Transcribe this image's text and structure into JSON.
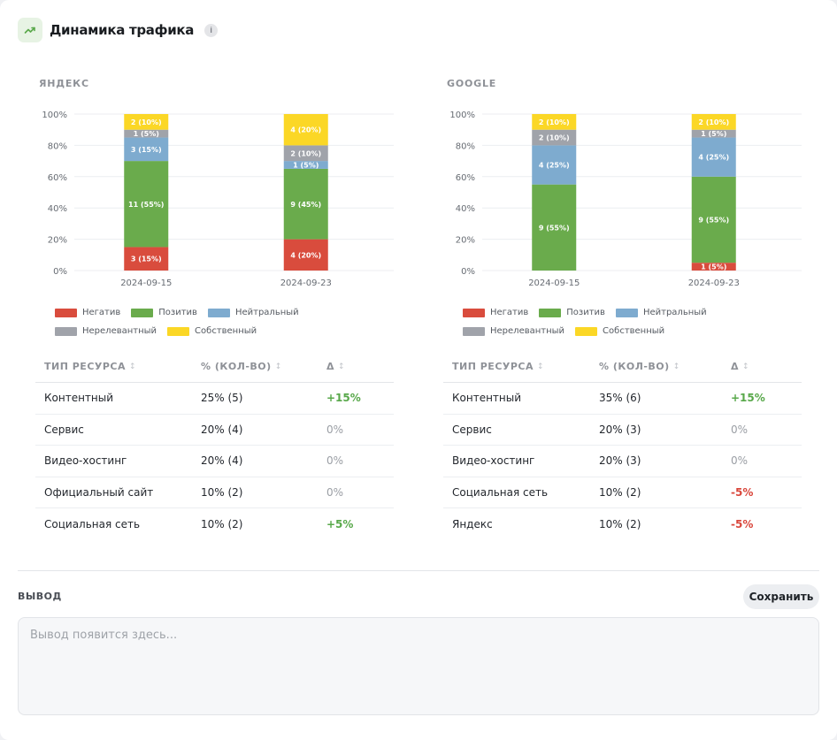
{
  "header": {
    "title": "Динамика трафика",
    "info_label": "i"
  },
  "colors": {
    "negative": "#d94c3d",
    "positive": "#6aab4c",
    "neutral": "#7eabcf",
    "irrelevant": "#a0a3aa",
    "own": "#fbd726",
    "accent_icon": "#59a84a"
  },
  "legend": {
    "items": [
      {
        "key": "negative",
        "label": "Негатив"
      },
      {
        "key": "positive",
        "label": "Позитив"
      },
      {
        "key": "neutral",
        "label": "Нейтральный"
      },
      {
        "key": "irrelevant",
        "label": "Нерелевантный"
      },
      {
        "key": "own",
        "label": "Собственный"
      }
    ]
  },
  "panels": [
    {
      "title": "ЯНДЕКС",
      "table": {
        "headers": [
          "ТИП РЕСУРСА",
          "% (КОЛ-ВО)",
          "Δ"
        ],
        "rows": [
          {
            "type": "Контентный",
            "share": "25% (5)",
            "delta": "+15%",
            "trend": "pos"
          },
          {
            "type": "Сервис",
            "share": "20% (4)",
            "delta": "0%",
            "trend": "zero"
          },
          {
            "type": "Видео-хостинг",
            "share": "20% (4)",
            "delta": "0%",
            "trend": "zero"
          },
          {
            "type": "Официальный сайт",
            "share": "10% (2)",
            "delta": "0%",
            "trend": "zero"
          },
          {
            "type": "Социальная сеть",
            "share": "10% (2)",
            "delta": "+5%",
            "trend": "pos"
          }
        ]
      }
    },
    {
      "title": "GOOGLE",
      "table": {
        "headers": [
          "ТИП РЕСУРСА",
          "% (КОЛ-ВО)",
          "Δ"
        ],
        "rows": [
          {
            "type": "Контентный",
            "share": "35% (6)",
            "delta": "+15%",
            "trend": "pos"
          },
          {
            "type": "Сервис",
            "share": "20% (3)",
            "delta": "0%",
            "trend": "zero"
          },
          {
            "type": "Видео-хостинг",
            "share": "20% (3)",
            "delta": "0%",
            "trend": "zero"
          },
          {
            "type": "Социальная сеть",
            "share": "10% (2)",
            "delta": "-5%",
            "trend": "neg"
          },
          {
            "type": "Яндекс",
            "share": "10% (2)",
            "delta": "-5%",
            "trend": "neg"
          }
        ]
      }
    }
  ],
  "chart_data": [
    {
      "type": "bar",
      "stacked": true,
      "title": "ЯНДЕКС",
      "categories": [
        "2024-09-15",
        "2024-09-23"
      ],
      "yticks": [
        "0%",
        "20%",
        "40%",
        "60%",
        "80%",
        "100%"
      ],
      "ylim": [
        0,
        100
      ],
      "grid": true,
      "legend_position": "bottom",
      "series": [
        {
          "name": "Негатив",
          "key": "negative",
          "values": [
            15,
            20
          ],
          "labels": [
            "3 (15%)",
            "4 (20%)"
          ]
        },
        {
          "name": "Позитив",
          "key": "positive",
          "values": [
            55,
            45
          ],
          "labels": [
            "11 (55%)",
            "9 (45%)"
          ]
        },
        {
          "name": "Нейтральный",
          "key": "neutral",
          "values": [
            15,
            5
          ],
          "labels": [
            "3 (15%)",
            "1 (5%)"
          ]
        },
        {
          "name": "Нерелевантный",
          "key": "irrelevant",
          "values": [
            5,
            10
          ],
          "labels": [
            "1 (5%)",
            "2 (10%)"
          ]
        },
        {
          "name": "Собственный",
          "key": "own",
          "values": [
            10,
            20
          ],
          "labels": [
            "2 (10%)",
            "4 (20%)"
          ]
        }
      ]
    },
    {
      "type": "bar",
      "stacked": true,
      "title": "GOOGLE",
      "categories": [
        "2024-09-15",
        "2024-09-23"
      ],
      "yticks": [
        "0%",
        "20%",
        "40%",
        "60%",
        "80%",
        "100%"
      ],
      "ylim": [
        0,
        100
      ],
      "grid": true,
      "legend_position": "bottom",
      "series": [
        {
          "name": "Негатив",
          "key": "negative",
          "values": [
            0,
            5
          ],
          "labels": [
            "",
            "1 (5%)"
          ]
        },
        {
          "name": "Позитив",
          "key": "positive",
          "values": [
            55,
            55
          ],
          "labels": [
            "9 (55%)",
            "9 (55%)"
          ]
        },
        {
          "name": "Нейтральный",
          "key": "neutral",
          "values": [
            25,
            25
          ],
          "labels": [
            "4 (25%)",
            "4 (25%)"
          ]
        },
        {
          "name": "Нерелевантный",
          "key": "irrelevant",
          "values": [
            10,
            5
          ],
          "labels": [
            "2 (10%)",
            "1 (5%)"
          ]
        },
        {
          "name": "Собственный",
          "key": "own",
          "values": [
            10,
            10
          ],
          "labels": [
            "2 (10%)",
            "2 (10%)"
          ]
        }
      ]
    }
  ],
  "output": {
    "title": "ВЫВОД",
    "save_label": "Сохранить",
    "placeholder": "Вывод появится здесь..."
  }
}
